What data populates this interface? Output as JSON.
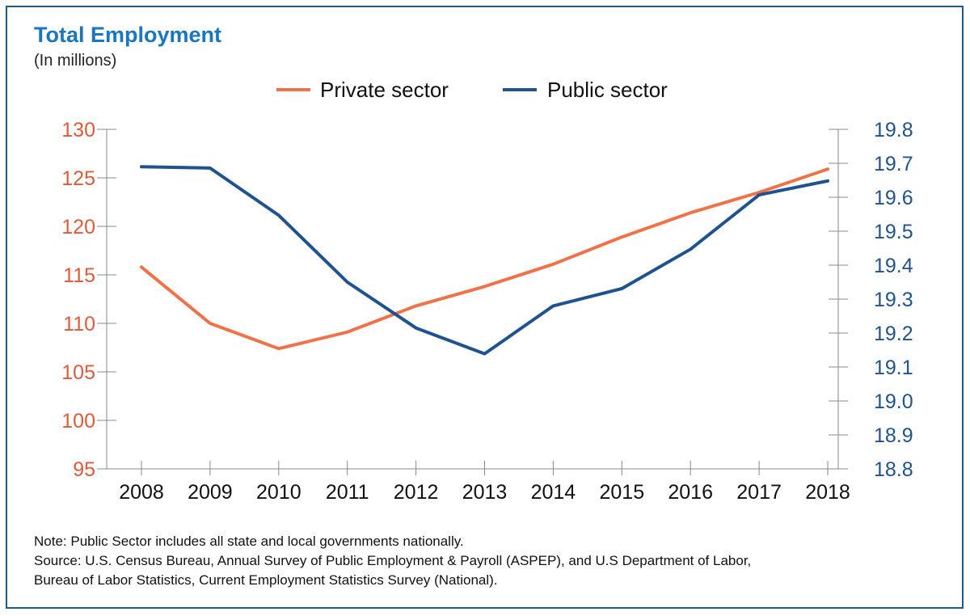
{
  "header": {
    "title": "Total Employment",
    "subtitle": "(In millions)"
  },
  "footer": {
    "note": "Note: Public Sector includes all state and local governments nationally.",
    "source_line1": "Source: U.S. Census Bureau, Annual Survey of Public Employment & Payroll (ASPEP), and U.S Department of Labor,",
    "source_line2": "Bureau of Labor Statistics, Current Employment Statistics Survey (National)."
  },
  "colors": {
    "private": "#ef7249",
    "public": "#1f538f",
    "left_axis_text": "#e05a3a",
    "right_axis_text": "#1f538f",
    "axis_line": "#888888"
  },
  "chart_data": {
    "type": "line",
    "title": "Total Employment",
    "subtitle": "(In millions)",
    "legend_position": "top",
    "grid": false,
    "categories": [
      "2008",
      "2009",
      "2010",
      "2011",
      "2012",
      "2013",
      "2014",
      "2015",
      "2016",
      "2017",
      "2018"
    ],
    "y_left": {
      "min": 95,
      "max": 130,
      "ticks": [
        "95",
        "100",
        "105",
        "110",
        "115",
        "120",
        "125",
        "130"
      ]
    },
    "y_right": {
      "min": 18.8,
      "max": 19.8,
      "ticks": [
        "18.8",
        "18.9",
        "19.0",
        "19.1",
        "19.2",
        "19.3",
        "19.4",
        "19.5",
        "19.6",
        "19.7",
        "19.8"
      ]
    },
    "series": [
      {
        "name": "Private sector",
        "axis": "left",
        "values": [
          115.8,
          110.0,
          107.4,
          109.1,
          111.8,
          113.8,
          116.1,
          118.9,
          121.4,
          123.5,
          125.9
        ]
      },
      {
        "name": "Public sector",
        "axis": "right",
        "values": [
          19.69,
          19.686,
          19.547,
          19.35,
          19.215,
          19.139,
          19.28,
          19.331,
          19.447,
          19.607,
          19.648
        ]
      }
    ]
  }
}
